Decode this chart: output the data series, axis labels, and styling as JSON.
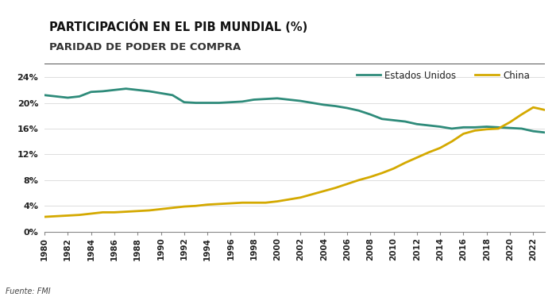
{
  "title1": "PARTICIPACIÓN EN EL PIB MUNDIAL (%)",
  "title2": "PARIDAD DE PODER DE COMPRA",
  "source": "Fuente: FMI",
  "legend_us": "Estados Unidos",
  "legend_china": "China",
  "years": [
    1980,
    1981,
    1982,
    1983,
    1984,
    1985,
    1986,
    1987,
    1988,
    1989,
    1990,
    1991,
    1992,
    1993,
    1994,
    1995,
    1996,
    1997,
    1998,
    1999,
    2000,
    2001,
    2002,
    2003,
    2004,
    2005,
    2006,
    2007,
    2008,
    2009,
    2010,
    2011,
    2012,
    2013,
    2014,
    2015,
    2016,
    2017,
    2018,
    2019,
    2020,
    2021,
    2022,
    2023
  ],
  "us": [
    21.2,
    21.0,
    20.8,
    21.0,
    21.7,
    21.8,
    22.0,
    22.2,
    22.0,
    21.8,
    21.5,
    21.2,
    20.1,
    20.0,
    20.0,
    20.0,
    20.1,
    20.2,
    20.5,
    20.6,
    20.7,
    20.5,
    20.3,
    20.0,
    19.7,
    19.5,
    19.2,
    18.8,
    18.2,
    17.5,
    17.3,
    17.1,
    16.7,
    16.5,
    16.3,
    16.0,
    16.2,
    16.2,
    16.3,
    16.2,
    16.1,
    16.0,
    15.6,
    15.4
  ],
  "china": [
    2.3,
    2.4,
    2.5,
    2.6,
    2.8,
    3.0,
    3.0,
    3.1,
    3.2,
    3.3,
    3.5,
    3.7,
    3.9,
    4.0,
    4.2,
    4.3,
    4.4,
    4.5,
    4.5,
    4.5,
    4.7,
    5.0,
    5.3,
    5.8,
    6.3,
    6.8,
    7.4,
    8.0,
    8.5,
    9.1,
    9.8,
    10.7,
    11.5,
    12.3,
    13.0,
    14.0,
    15.2,
    15.7,
    15.9,
    16.0,
    17.0,
    18.2,
    19.3,
    18.9
  ],
  "color_us": "#2e8b7a",
  "color_china": "#d4a900",
  "ylim": [
    0,
    26
  ],
  "yticks": [
    0,
    4,
    8,
    12,
    16,
    20,
    24
  ],
  "bg_color": "#ffffff",
  "line_width": 2.0,
  "title1_fontsize": 10.5,
  "title2_fontsize": 9.5,
  "source_fontsize": 7,
  "tick_fontsize": 7.5,
  "ytick_fontsize": 8
}
